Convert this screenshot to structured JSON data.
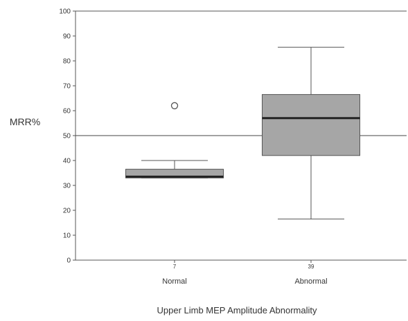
{
  "chart_data": {
    "type": "boxplot",
    "title": "",
    "xlabel": "Upper Limb MEP Amplitude Abnormality",
    "ylabel": "MRR%",
    "ylim": [
      0,
      100
    ],
    "yticks": [
      0,
      10,
      20,
      30,
      40,
      50,
      60,
      70,
      80,
      90,
      100
    ],
    "grid": false,
    "reference_line": 50,
    "box_fill": "#a6a6a6",
    "groups": [
      {
        "category": "Normal",
        "n": "7",
        "whisker_low": 33,
        "q1": 33,
        "median": 33.5,
        "q3": 36.5,
        "whisker_high": 40,
        "outliers": [
          62
        ]
      },
      {
        "category": "Abnormal",
        "n": "39",
        "whisker_low": 16.5,
        "q1": 42,
        "median": 57,
        "q3": 66.5,
        "whisker_high": 85.5,
        "outliers": []
      }
    ]
  }
}
